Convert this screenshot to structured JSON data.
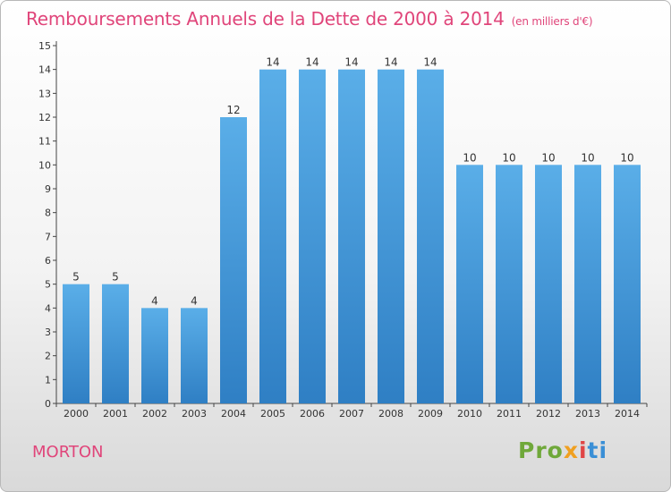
{
  "chart_data": {
    "type": "bar",
    "title": "Remboursements Annuels de la Dette de 2000 à 2014",
    "subtitle": "(en milliers d'€)",
    "categories": [
      "2000",
      "2001",
      "2002",
      "2003",
      "2004",
      "2005",
      "2006",
      "2007",
      "2008",
      "2009",
      "2010",
      "2011",
      "2012",
      "2013",
      "2014"
    ],
    "values": [
      5,
      5,
      4,
      4,
      12,
      14,
      14,
      14,
      14,
      14,
      10,
      10,
      10,
      10,
      10
    ],
    "ylim": [
      0,
      15
    ],
    "yticks": [
      0,
      1,
      2,
      3,
      4,
      5,
      6,
      7,
      8,
      9,
      10,
      11,
      12,
      13,
      14,
      15
    ],
    "xlabel": "",
    "ylabel": "",
    "grid": false,
    "bar_color": "#4a9ee0"
  },
  "commune": "MORTON",
  "brand": {
    "p1": "Pro",
    "p2": "x",
    "p3": "i",
    "p4": "ti"
  }
}
